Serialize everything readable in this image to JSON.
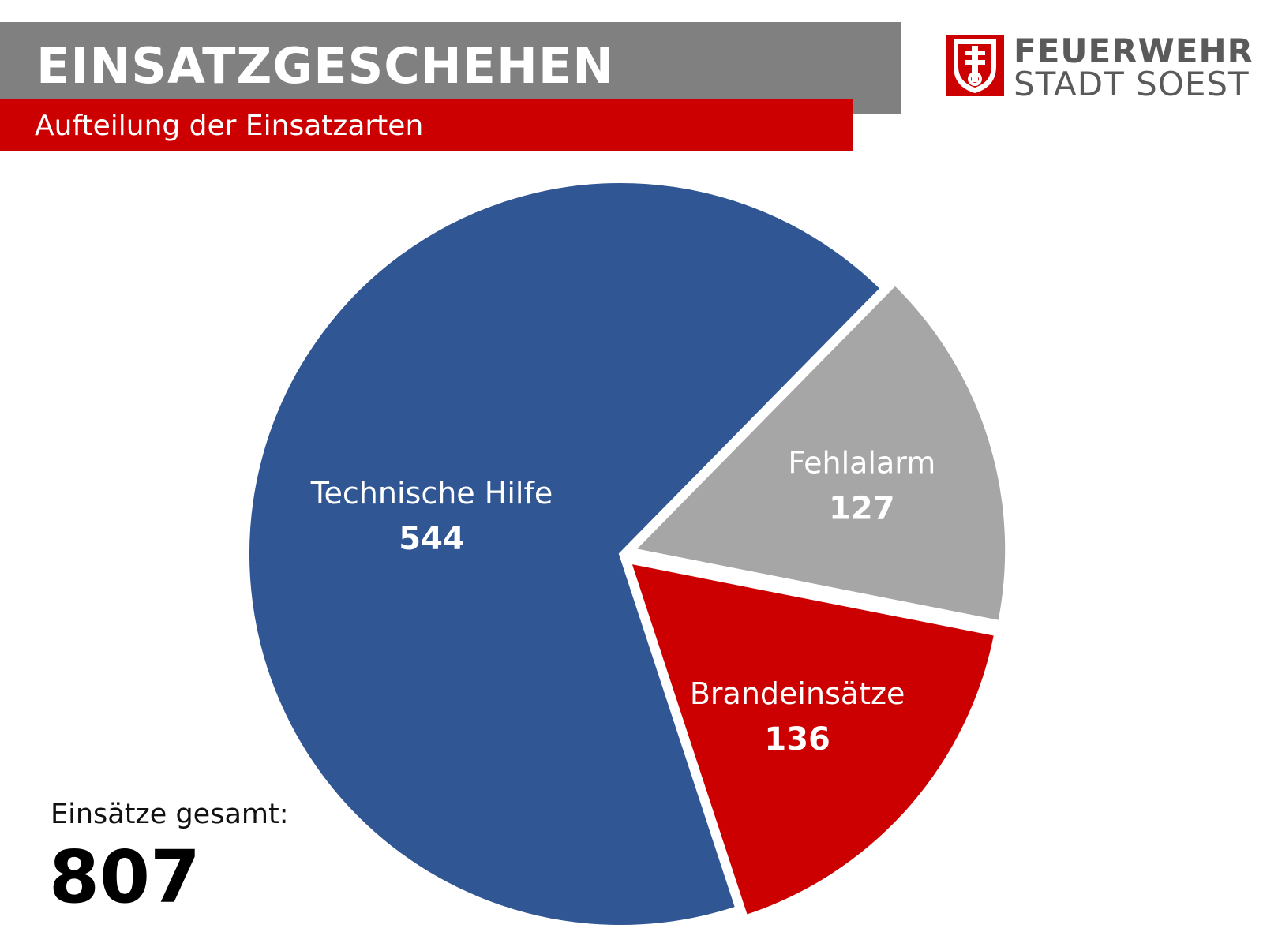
{
  "header": {
    "title": "EINSATZGESCHEHEN",
    "subtitle": "Aufteilung der Einsatzarten"
  },
  "logo": {
    "line1": "FEUERWEHR",
    "line2": "STADT SOEST",
    "icon": "coat-of-arms-key-icon"
  },
  "total": {
    "label": "Einsätze gesamt:",
    "value": "807"
  },
  "colors": {
    "title_bar": "#808080",
    "accent_red": "#cc0000",
    "blue": "#315694",
    "gray": "#a6a6a6"
  },
  "chart_data": {
    "type": "pie",
    "categories": [
      "Technische Hilfe",
      "Fehlalarm",
      "Brandeinsätze"
    ],
    "values": [
      544,
      127,
      136
    ],
    "colors": [
      "#315694",
      "#a6a6a6",
      "#cc0000"
    ]
  }
}
